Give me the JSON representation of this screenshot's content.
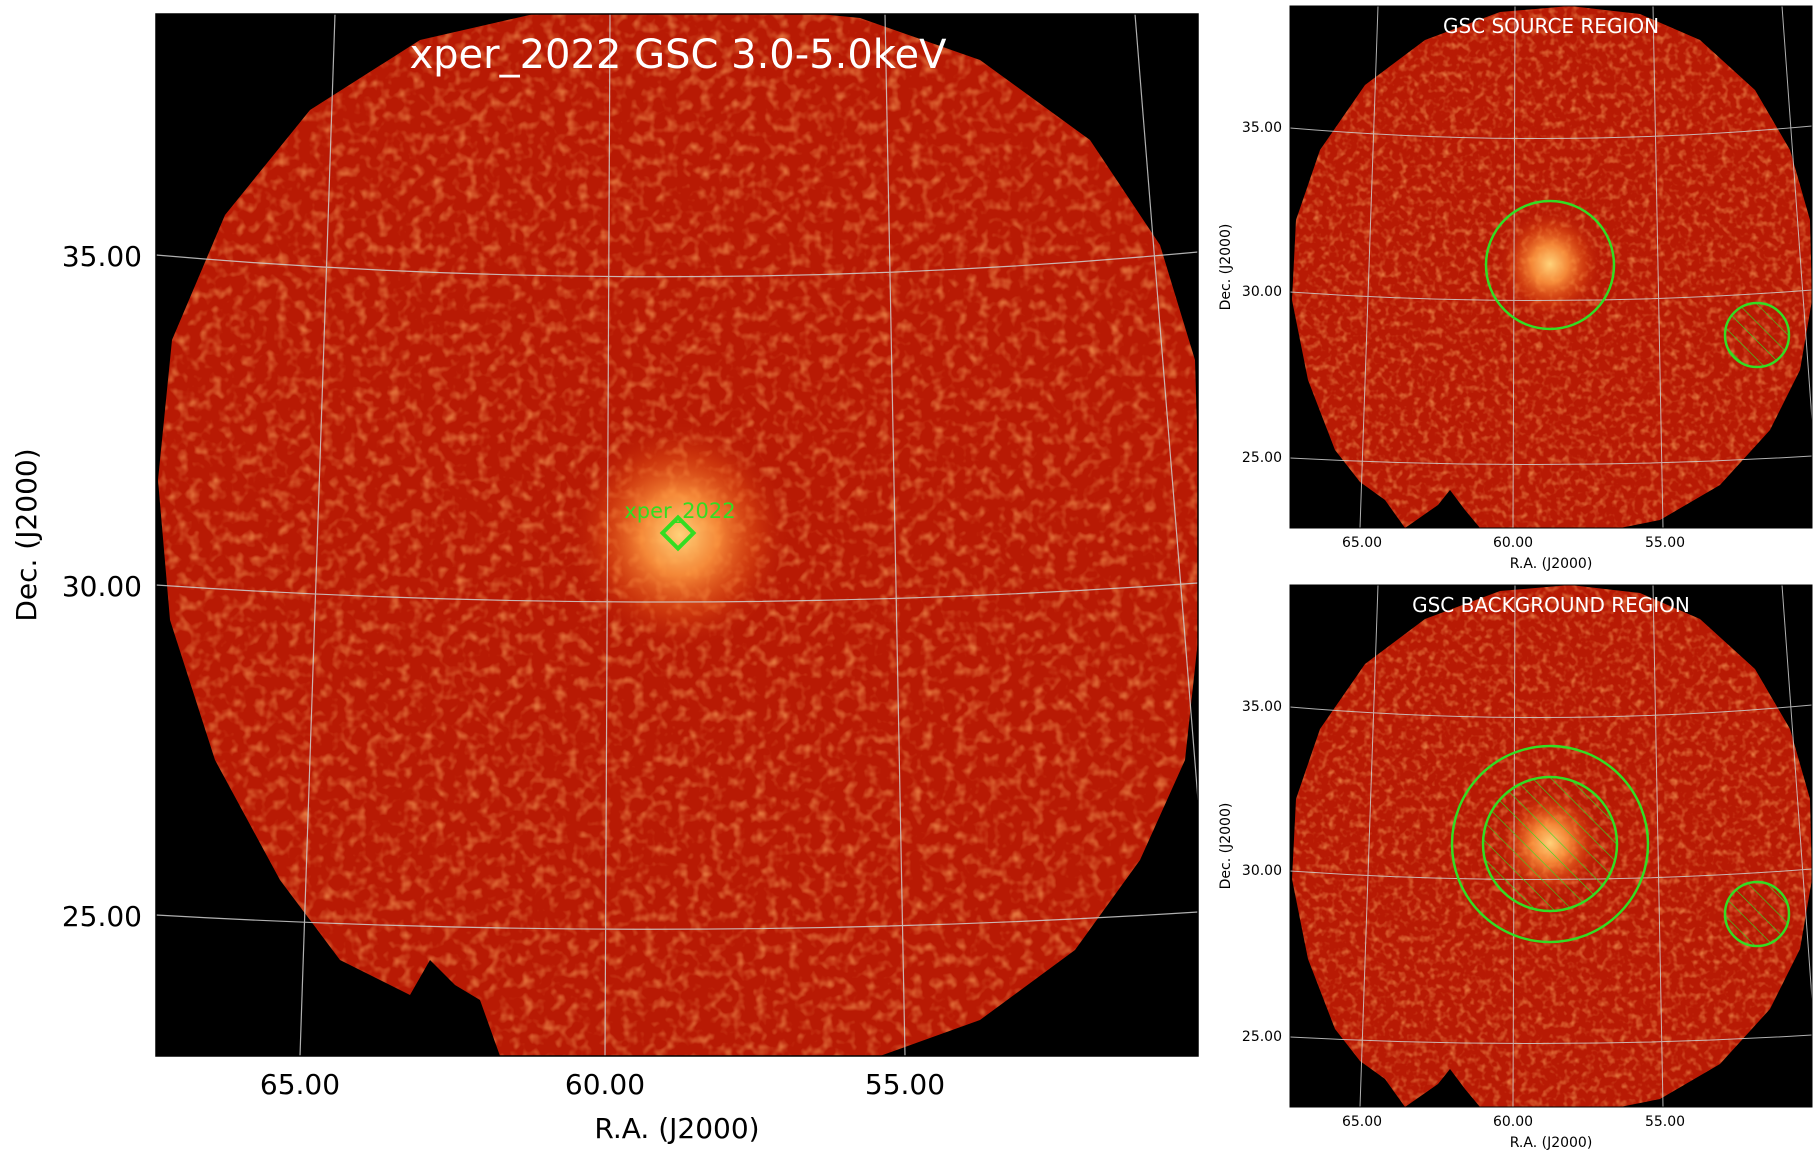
{
  "main_panel": {
    "title": "xper_2022 GSC 3.0-5.0keV",
    "source_label": "xper_2022",
    "y_axis_label": "Dec. (J2000)",
    "x_axis_label": "R.A. (J2000)",
    "dec_ticks": [
      {
        "value": 35.0,
        "label": "35.00"
      },
      {
        "value": 30.0,
        "label": "30.00"
      },
      {
        "value": 25.0,
        "label": "25.00"
      }
    ],
    "ra_ticks": [
      {
        "value": 65.0,
        "label": "65.00"
      },
      {
        "value": 60.0,
        "label": "60.00"
      },
      {
        "value": 55.0,
        "label": "55.00"
      }
    ]
  },
  "source_panel": {
    "title": "GSC SOURCE REGION",
    "y_axis_label": "Dec. (J2000)",
    "x_axis_label": "R.A. (J2000)",
    "dec_ticks": [
      {
        "value": 35.0,
        "label": "35.00"
      },
      {
        "value": 30.0,
        "label": "30.00"
      },
      {
        "value": 25.0,
        "label": "25.00"
      }
    ],
    "ra_ticks": [
      {
        "value": 65.0,
        "label": "65.00"
      },
      {
        "value": 60.0,
        "label": "60.00"
      },
      {
        "value": 55.0,
        "label": "55.00"
      }
    ]
  },
  "background_panel": {
    "title": "GSC BACKGROUND REGION",
    "y_axis_label": "Dec. (J2000)",
    "x_axis_label": "R.A. (J2000)",
    "dec_ticks": [
      {
        "value": 35.0,
        "label": "35.00"
      },
      {
        "value": 30.0,
        "label": "30.00"
      },
      {
        "value": 25.0,
        "label": "25.00"
      }
    ],
    "ra_ticks": [
      {
        "value": 65.0,
        "label": "65.00"
      },
      {
        "value": 60.0,
        "label": "60.00"
      },
      {
        "value": 55.0,
        "label": "55.00"
      }
    ]
  },
  "colors": {
    "sky_background": "#000000",
    "image_field": "#b81a04",
    "source_glow": "#ffb060",
    "region_marker": "#33dd22",
    "grid_lines": "#cfcfcf",
    "title_text": "#ffffff"
  }
}
